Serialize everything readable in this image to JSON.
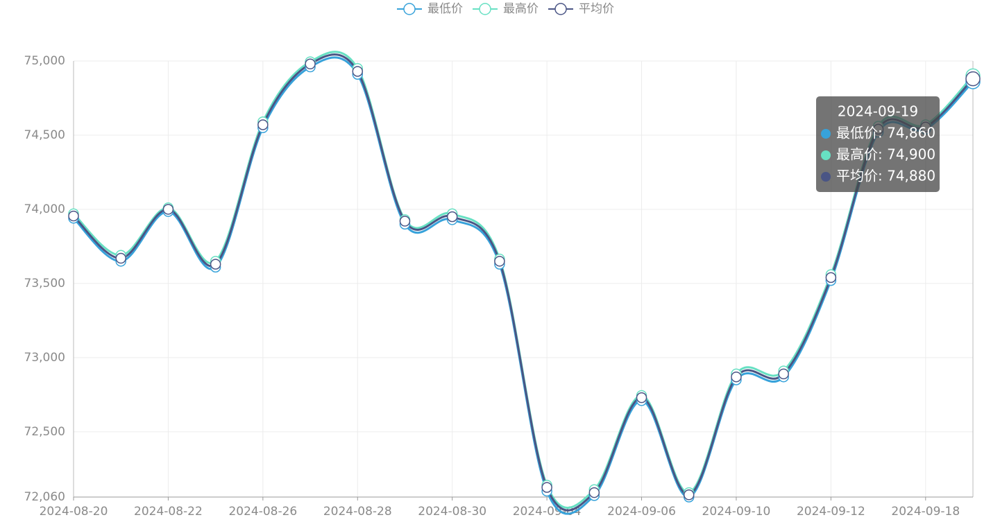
{
  "chart_data": {
    "type": "line",
    "smooth": true,
    "categories": [
      "2024-08-20",
      null,
      "2024-08-22",
      null,
      "2024-08-26",
      null,
      "2024-08-28",
      null,
      "2024-08-30",
      null,
      "2024-09-04",
      null,
      "2024-09-06",
      null,
      "2024-09-10",
      null,
      "2024-09-12",
      null,
      "2024-09-18",
      null
    ],
    "series": [
      {
        "name": "最低价",
        "color": "#37a2da",
        "values": [
          73940,
          73650,
          73985,
          73610,
          74550,
          74960,
          74910,
          73900,
          73930,
          73630,
          72100,
          72070,
          72710,
          72060,
          72850,
          72870,
          73520,
          74520,
          74540,
          74860
        ]
      },
      {
        "name": "最高价",
        "color": "#67e0c3",
        "values": [
          73970,
          73690,
          74010,
          73650,
          74590,
          74995,
          74950,
          73930,
          73970,
          73665,
          72140,
          72110,
          72745,
          72090,
          72890,
          72910,
          73560,
          74560,
          74570,
          74900
        ]
      },
      {
        "name": "平均价",
        "color": "#4a5585",
        "values": [
          73955,
          73670,
          74000,
          73630,
          74570,
          74980,
          74930,
          73920,
          73950,
          73650,
          72125,
          72090,
          72730,
          72075,
          72870,
          72890,
          73540,
          74540,
          74555,
          74880
        ]
      }
    ],
    "ylim": [
      72060,
      75000
    ],
    "yticks": [
      {
        "value": 72060,
        "label": "72,060"
      },
      {
        "value": 72500,
        "label": "72,500"
      },
      {
        "value": 73000,
        "label": "73,000"
      },
      {
        "value": 73500,
        "label": "73,500"
      },
      {
        "value": 74000,
        "label": "74,000"
      },
      {
        "value": 74500,
        "label": "74,500"
      },
      {
        "value": 75000,
        "label": "75,000"
      }
    ],
    "grid": true,
    "legend": "top",
    "tooltip": {
      "category": "2024-09-19",
      "items": [
        "最低价: 74,860",
        "最高价: 74,900",
        "平均价: 74,880"
      ]
    }
  }
}
